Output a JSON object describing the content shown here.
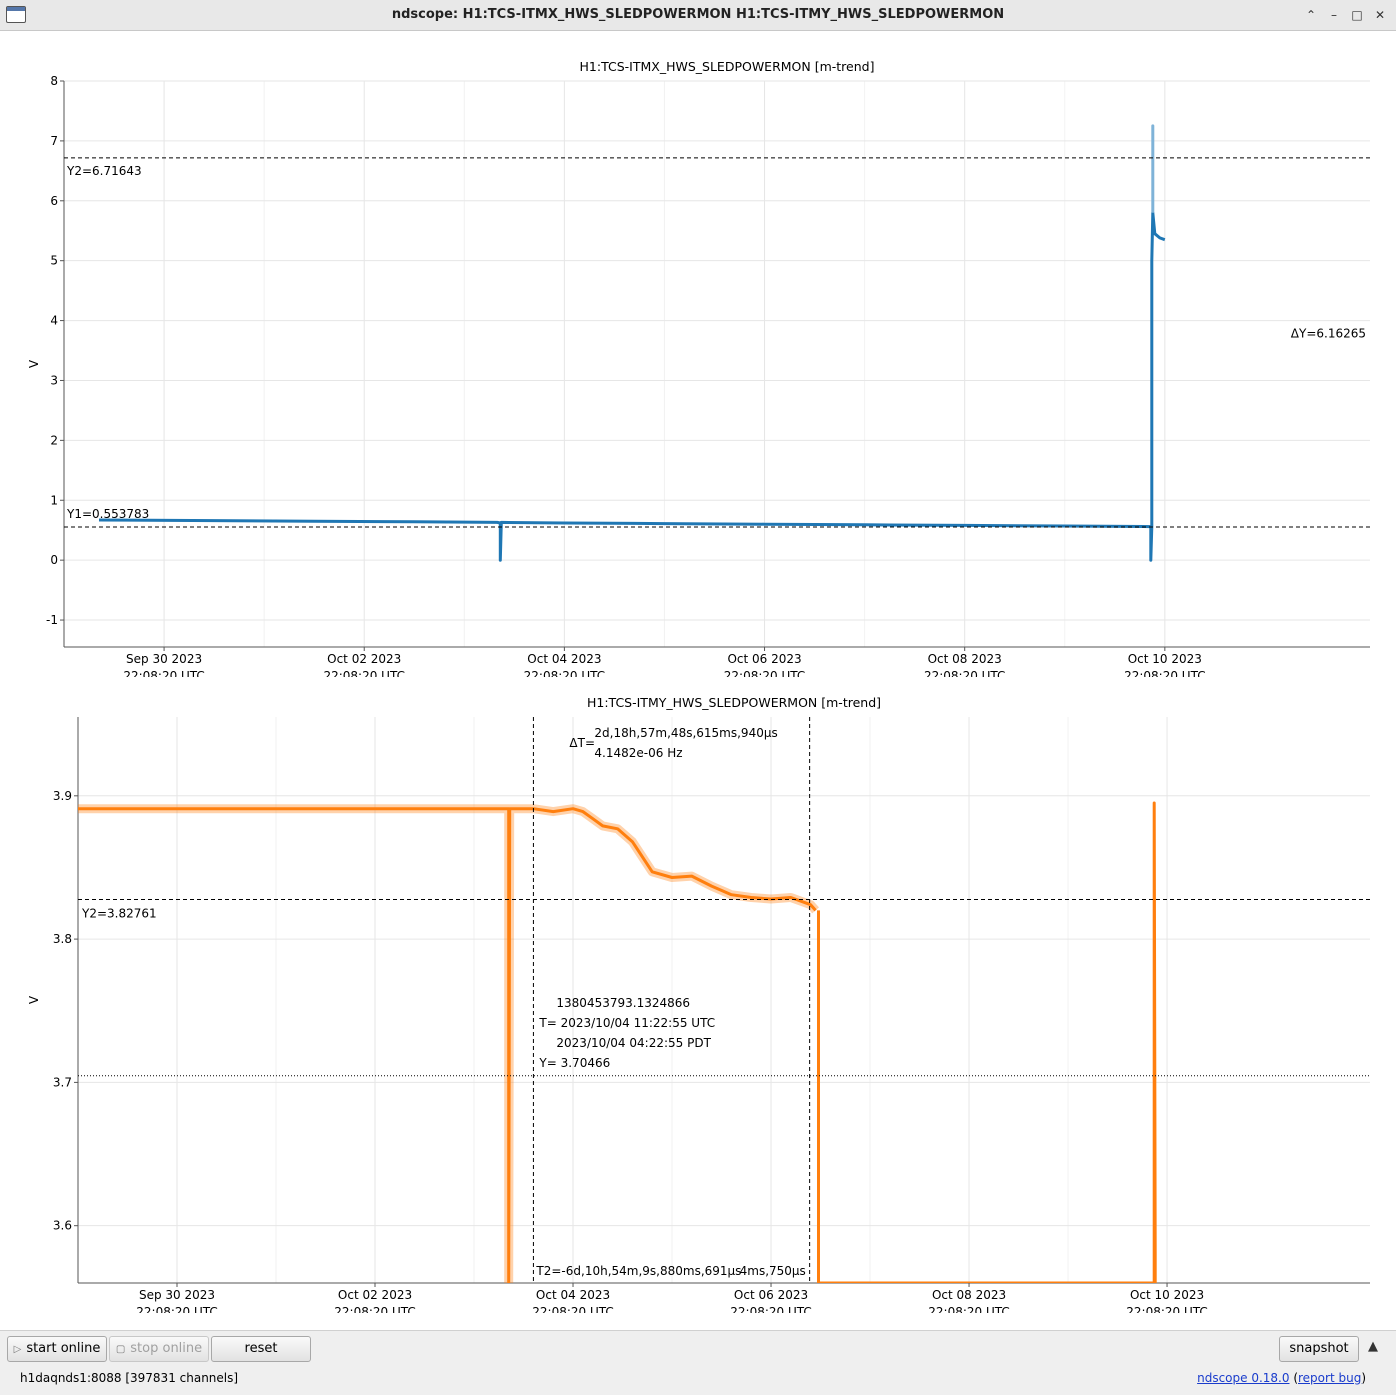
{
  "window": {
    "title": "ndscope: H1:TCS-ITMX_HWS_SLEDPOWERMON H1:TCS-ITMY_HWS_SLEDPOWERMON"
  },
  "chart_data": [
    {
      "type": "line",
      "title": "H1:TCS-ITMX_HWS_SLEDPOWERMON [m-trend]",
      "ylabel": "V",
      "ylim": [
        -1.45,
        8.0
      ],
      "yticks": [
        -1,
        0,
        1,
        2,
        3,
        4,
        5,
        6,
        7,
        8
      ],
      "xlim": [
        -0.5,
        12.55
      ],
      "xticks": [
        {
          "x": 0.5,
          "line1": "Sep 30 2023",
          "line2": "22:08:20 UTC"
        },
        {
          "x": 2.5,
          "line1": "Oct 02 2023",
          "line2": "22:08:20 UTC"
        },
        {
          "x": 4.5,
          "line1": "Oct 04 2023",
          "line2": "22:08:20 UTC"
        },
        {
          "x": 6.5,
          "line1": "Oct 06 2023",
          "line2": "22:08:20 UTC"
        },
        {
          "x": 8.5,
          "line1": "Oct 08 2023",
          "line2": "22:08:20 UTC"
        },
        {
          "x": 10.5,
          "line1": "Oct 10 2023",
          "line2": "22:08:20 UTC"
        }
      ],
      "grid": true,
      "color": "#1f77b4",
      "series": [
        {
          "x": [
            -0.15,
            1.0,
            2.0,
            3.0,
            3.83,
            3.86,
            3.86,
            3.87,
            4.5,
            5.5,
            6.5,
            7.5,
            8.5,
            9.5,
            10.36,
            10.36,
            10.37,
            10.37,
            10.38,
            10.4,
            10.45,
            10.5
          ],
          "y": [
            0.67,
            0.66,
            0.65,
            0.64,
            0.63,
            0.62,
            0.0,
            0.63,
            0.62,
            0.61,
            0.6,
            0.59,
            0.58,
            0.57,
            0.56,
            0.0,
            0.56,
            5.0,
            5.8,
            5.45,
            5.38,
            5.35
          ]
        },
        {
          "name": "",
          "x": [
            10.38,
            10.38,
            10.38
          ],
          "y": [
            5.8,
            7.25,
            5.8
          ],
          "color": "#7fb3d8"
        }
      ],
      "cursors": {
        "y1": 0.553783,
        "y1_label": "Y1=0.553783",
        "y2": 6.71643,
        "y2_label": "Y2=6.71643",
        "dy_label": "ΔY=6.16265"
      }
    },
    {
      "type": "line",
      "title": "H1:TCS-ITMY_HWS_SLEDPOWERMON [m-trend]",
      "ylabel": "V",
      "ylim": [
        3.56,
        3.955
      ],
      "yticks": [
        3.6,
        3.7,
        3.8,
        3.9
      ],
      "xlim": [
        -0.5,
        12.55
      ],
      "grid": true,
      "color": "#ff7f0e",
      "series": [
        {
          "x": [
            -0.5,
            1.0,
            2.5,
            3.85,
            3.85,
            3.86,
            4.1,
            4.3,
            4.5,
            4.6,
            4.7,
            4.8,
            4.95,
            5.1,
            5.3,
            5.5,
            5.7,
            5.9,
            6.1,
            6.3,
            6.5,
            6.7,
            6.9,
            6.95
          ],
          "y": [
            3.891,
            3.891,
            3.891,
            3.891,
            3.56,
            3.891,
            3.891,
            3.889,
            3.891,
            3.889,
            3.884,
            3.879,
            3.877,
            3.868,
            3.847,
            3.843,
            3.844,
            3.837,
            3.831,
            3.829,
            3.828,
            3.829,
            3.824,
            3.82
          ]
        },
        {
          "x": [
            6.98,
            6.98,
            10.37,
            10.37,
            10.37,
            10.38,
            10.38
          ],
          "y": [
            3.82,
            3.56,
            3.56,
            3.895,
            3.895,
            3.58,
            3.56
          ]
        }
      ],
      "cursors": {
        "t1": 4.1,
        "t2": 6.89,
        "y2": 3.82761,
        "y2_label": "Y2=3.82761",
        "dt_line1": "2d,18h,57m,48s,615ms,940μs",
        "dt_line2": "4.1482e-06 Hz",
        "dt_prefix": "ΔT=",
        "t2_label": "T2=-6d,10h,54m,9s,880ms,691μs",
        "t2_trailing": "4ms,750μs"
      },
      "crosshair": {
        "y": 3.70466,
        "gps": "1380453793.1324866",
        "utc": "T= 2023/10/04 11:22:55 UTC",
        "pdt": "2023/10/04 04:22:55 PDT",
        "yval": "Y= 3.70466"
      }
    }
  ],
  "toolbar": {
    "start_label": "start online",
    "stop_label": "stop online",
    "reset_label": "reset",
    "snapshot_label": "snapshot"
  },
  "status": {
    "server": "h1daqnds1:8088  [397831 channels]",
    "version_label": "ndscope 0.18.0",
    "report_label": "report bug"
  }
}
